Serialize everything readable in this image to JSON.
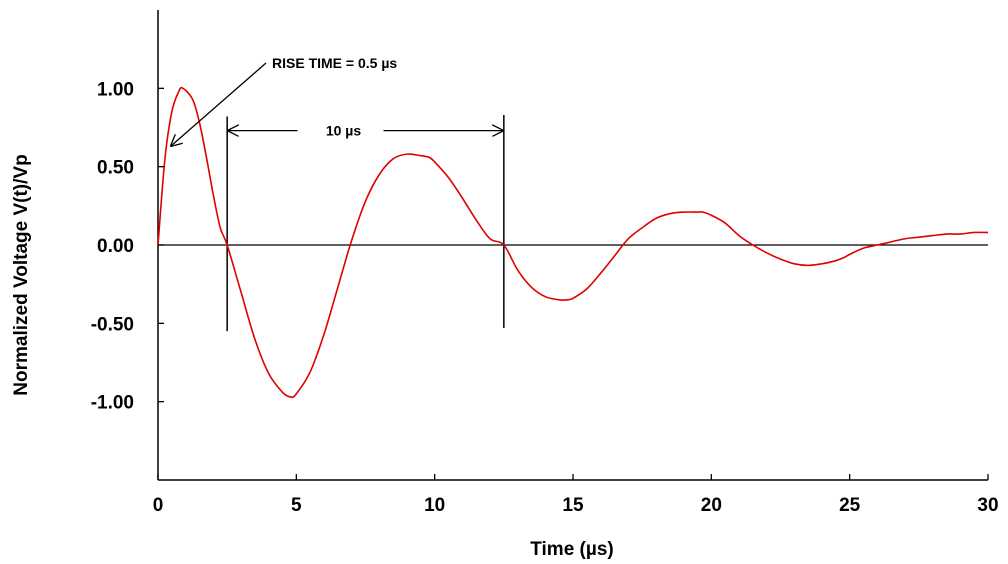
{
  "chart_data": {
    "type": "line",
    "title": "",
    "xlabel": "Time (µs)",
    "ylabel": "Normalized Voltage V(t)/Vp",
    "xlim": [
      0,
      30
    ],
    "ylim": [
      -1.5,
      1.5
    ],
    "grid": false,
    "x_ticks": [
      0,
      5,
      10,
      15,
      20,
      25,
      30
    ],
    "x_tick_labels": [
      "0",
      "5",
      "10",
      "15",
      "20",
      "25",
      "30"
    ],
    "y_ticks": [
      1.0,
      0.5,
      0.0,
      -0.5,
      -1.0
    ],
    "y_tick_labels": [
      "1.00",
      "0.50",
      "0.00",
      "-0.50",
      "-1.00"
    ],
    "series": [
      {
        "color": "#e00000",
        "x": [
          0,
          0.25,
          0.5,
          0.75,
          0.9,
          1.25,
          1.5,
          1.75,
          2.0,
          2.25,
          2.5,
          3.0,
          3.5,
          4.0,
          4.5,
          4.8,
          5.0,
          5.5,
          6.0,
          6.5,
          7.0,
          7.5,
          8.0,
          8.5,
          9.0,
          9.5,
          9.8,
          10.0,
          10.5,
          11.0,
          11.5,
          12.0,
          12.5,
          13.0,
          13.5,
          14.0,
          14.5,
          14.8,
          15.0,
          15.5,
          16.0,
          16.5,
          17.0,
          17.5,
          18.0,
          18.5,
          19.0,
          19.5,
          19.7,
          20.0,
          20.5,
          21.0,
          21.5,
          22.0,
          22.5,
          23.0,
          23.5,
          24.0,
          24.5,
          24.8,
          25.0,
          25.5,
          26.0,
          26.5,
          27.0,
          27.5,
          28.0,
          28.5,
          29.0,
          29.5,
          30.0
        ],
        "y": [
          0.0,
          0.55,
          0.85,
          0.98,
          1.0,
          0.93,
          0.78,
          0.56,
          0.32,
          0.11,
          0.0,
          -0.3,
          -0.6,
          -0.82,
          -0.94,
          -0.97,
          -0.95,
          -0.81,
          -0.57,
          -0.27,
          0.03,
          0.28,
          0.45,
          0.55,
          0.58,
          0.57,
          0.56,
          0.53,
          0.43,
          0.3,
          0.16,
          0.04,
          0.0,
          -0.16,
          -0.27,
          -0.33,
          -0.35,
          -0.35,
          -0.34,
          -0.28,
          -0.18,
          -0.07,
          0.04,
          0.11,
          0.17,
          0.2,
          0.21,
          0.21,
          0.21,
          0.19,
          0.14,
          0.06,
          0.0,
          -0.05,
          -0.09,
          -0.12,
          -0.13,
          -0.12,
          -0.1,
          -0.08,
          -0.06,
          -0.02,
          0.0,
          0.02,
          0.04,
          0.05,
          0.06,
          0.07,
          0.07,
          0.08,
          0.08
        ]
      }
    ],
    "annotations": [
      {
        "text": "RISE TIME = 0.5 µs",
        "arrow_to": [
          0.4,
          0.62
        ]
      },
      {
        "text": "10 µs",
        "span": [
          2.5,
          12.5
        ],
        "y": 0.73
      }
    ],
    "marker_lines": [
      {
        "x": 2.5,
        "y_from": -0.55,
        "y_to": 0.82
      },
      {
        "x": 12.5,
        "y_from": -0.53,
        "y_to": 0.83
      }
    ]
  }
}
